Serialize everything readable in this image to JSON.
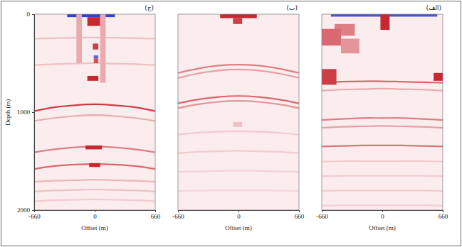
{
  "chart_data": [
    {
      "type": "heatmap",
      "title": "(ج)",
      "x_label": "Offset (m)",
      "y_label": "Depth (m)",
      "xlim": [
        -660,
        660
      ],
      "ylim": [
        0,
        2000
      ],
      "xticks": [
        -660,
        0,
        660
      ],
      "yticks": [
        0,
        1000,
        2000
      ],
      "zlim": [
        -1,
        1
      ],
      "x": [
        -660,
        -440,
        -220,
        0,
        220,
        440,
        660
      ],
      "patches": [
        {
          "x": [
            -300,
            220
          ],
          "y": [
            0,
            30
          ],
          "amplitude": -0.9
        },
        {
          "x": [
            -80,
            60
          ],
          "y": [
            30,
            120
          ],
          "amplitude": 0.9
        },
        {
          "x": [
            -200,
            -140
          ],
          "y": [
            0,
            500
          ],
          "amplitude": 0.3
        },
        {
          "x": [
            60,
            120
          ],
          "y": [
            0,
            700
          ],
          "amplitude": 0.3
        },
        {
          "x": [
            -20,
            40
          ],
          "y": [
            300,
            360
          ],
          "amplitude": 0.8
        },
        {
          "x": [
            -10,
            40
          ],
          "y": [
            420,
            450
          ],
          "amplitude": -0.7
        },
        {
          "x": [
            -10,
            40
          ],
          "y": [
            450,
            500
          ],
          "amplitude": 0.7
        },
        {
          "x": [
            -80,
            40
          ],
          "y": [
            630,
            680
          ],
          "amplitude": 0.9
        },
        {
          "x": [
            -100,
            80
          ],
          "y": [
            1340,
            1380
          ],
          "amplitude": 0.9
        },
        {
          "x": [
            -60,
            60
          ],
          "y": [
            1520,
            1560
          ],
          "amplitude": 0.9
        }
      ],
      "series": [
        {
          "values": [
            250,
            245,
            240,
            238,
            240,
            245,
            250
          ],
          "amplitude": 0.2
        },
        {
          "values": [
            520,
            510,
            505,
            500,
            505,
            510,
            520
          ],
          "amplitude": 0.2
        },
        {
          "values": [
            990,
            950,
            930,
            920,
            930,
            950,
            990
          ],
          "amplitude": 0.8
        },
        {
          "values": [
            1090,
            1060,
            1040,
            1030,
            1040,
            1060,
            1090
          ],
          "amplitude": 0.3
        },
        {
          "values": [
            1410,
            1380,
            1360,
            1350,
            1360,
            1380,
            1410
          ],
          "amplitude": 0.5
        },
        {
          "values": [
            1580,
            1550,
            1535,
            1530,
            1535,
            1550,
            1580
          ],
          "amplitude": 0.6
        },
        {
          "values": [
            1710,
            1700,
            1695,
            1690,
            1695,
            1700,
            1710
          ],
          "amplitude": 0.25
        },
        {
          "values": [
            1810,
            1800,
            1795,
            1790,
            1795,
            1800,
            1810
          ],
          "amplitude": 0.2
        },
        {
          "values": [
            1910,
            1900,
            1895,
            1890,
            1895,
            1900,
            1910
          ],
          "amplitude": 0.15
        }
      ]
    },
    {
      "type": "heatmap",
      "title": "(ب)",
      "x_label": "Offset (m)",
      "xlim": [
        -660,
        660
      ],
      "ylim": [
        0,
        2000
      ],
      "xticks": [
        -660,
        0,
        660
      ],
      "tick_labels": "x",
      "zlim": [
        -1,
        1
      ],
      "x": [
        -660,
        -440,
        -220,
        0,
        220,
        440,
        660
      ],
      "patches": [
        {
          "x": [
            -200,
            200
          ],
          "y": [
            0,
            40
          ],
          "amplitude": 0.9
        },
        {
          "x": [
            -60,
            40
          ],
          "y": [
            40,
            100
          ],
          "amplitude": 0.8
        },
        {
          "x": [
            -60,
            40
          ],
          "y": [
            1100,
            1150
          ],
          "amplitude": 0.2
        }
      ],
      "series": [
        {
          "values": [
            600,
            555,
            525,
            515,
            525,
            555,
            600
          ],
          "amplitude": 0.5
        },
        {
          "values": [
            650,
            605,
            575,
            565,
            575,
            605,
            650
          ],
          "amplitude": 0.35
        },
        {
          "values": [
            910,
            870,
            845,
            835,
            845,
            870,
            910
          ],
          "amplitude": 0.6
        },
        {
          "values": [
            960,
            920,
            895,
            885,
            895,
            920,
            960
          ],
          "amplitude": 0.4
        },
        {
          "values": [
            1230,
            1210,
            1200,
            1195,
            1200,
            1210,
            1230
          ],
          "amplitude": 0.15
        },
        {
          "values": [
            1420,
            1405,
            1400,
            1395,
            1400,
            1405,
            1420
          ],
          "amplitude": 0.15
        },
        {
          "values": [
            1610,
            1605,
            1600,
            1598,
            1600,
            1605,
            1610
          ],
          "amplitude": 0.12
        },
        {
          "values": [
            1805,
            1802,
            1800,
            1800,
            1800,
            1802,
            1805
          ],
          "amplitude": 0.1
        }
      ]
    },
    {
      "type": "heatmap",
      "title": "(الف)",
      "x_label": "Offset (m)",
      "xlim": [
        -660,
        660
      ],
      "ylim": [
        0,
        2000
      ],
      "xticks": [
        -660,
        0,
        660
      ],
      "tick_labels": "x",
      "zlim": [
        -1,
        1
      ],
      "x": [
        -660,
        -440,
        -220,
        0,
        220,
        440,
        660
      ],
      "patches": [
        {
          "x": [
            -560,
            600
          ],
          "y": [
            0,
            25
          ],
          "amplitude": -0.8
        },
        {
          "x": [
            -20,
            80
          ],
          "y": [
            0,
            160
          ],
          "amplitude": 0.9
        },
        {
          "x": [
            -520,
            -300
          ],
          "y": [
            100,
            220
          ],
          "amplitude": 0.5
        },
        {
          "x": [
            -660,
            -450
          ],
          "y": [
            150,
            320
          ],
          "amplitude": 0.6
        },
        {
          "x": [
            -450,
            -250
          ],
          "y": [
            250,
            400
          ],
          "amplitude": 0.4
        },
        {
          "x": [
            -660,
            -500
          ],
          "y": [
            560,
            720
          ],
          "amplitude": 0.8
        },
        {
          "x": [
            560,
            660
          ],
          "y": [
            600,
            680
          ],
          "amplitude": 0.9
        }
      ],
      "series": [
        {
          "values": [
            700,
            690,
            685,
            685,
            690,
            695,
            700
          ],
          "amplitude": 0.6
        },
        {
          "values": [
            780,
            770,
            765,
            760,
            765,
            770,
            780
          ],
          "amplitude": 0.3
        },
        {
          "values": [
            1080,
            1070,
            1060,
            1060,
            1060,
            1070,
            1080
          ],
          "amplitude": 0.5
        },
        {
          "values": [
            1160,
            1150,
            1145,
            1140,
            1145,
            1150,
            1160
          ],
          "amplitude": 0.35
        },
        {
          "values": [
            1350,
            1345,
            1340,
            1340,
            1340,
            1345,
            1350
          ],
          "amplitude": 0.55
        },
        {
          "values": [
            1505,
            1500,
            1500,
            1500,
            1500,
            1500,
            1505
          ],
          "amplitude": 0.15
        },
        {
          "values": [
            1655,
            1650,
            1650,
            1650,
            1650,
            1650,
            1655
          ],
          "amplitude": 0.15
        },
        {
          "values": [
            1805,
            1800,
            1800,
            1800,
            1800,
            1800,
            1805
          ],
          "amplitude": 0.15
        },
        {
          "values": [
            1955,
            1950,
            1950,
            1950,
            1950,
            1950,
            1955
          ],
          "amplitude": 0.12
        }
      ]
    }
  ]
}
